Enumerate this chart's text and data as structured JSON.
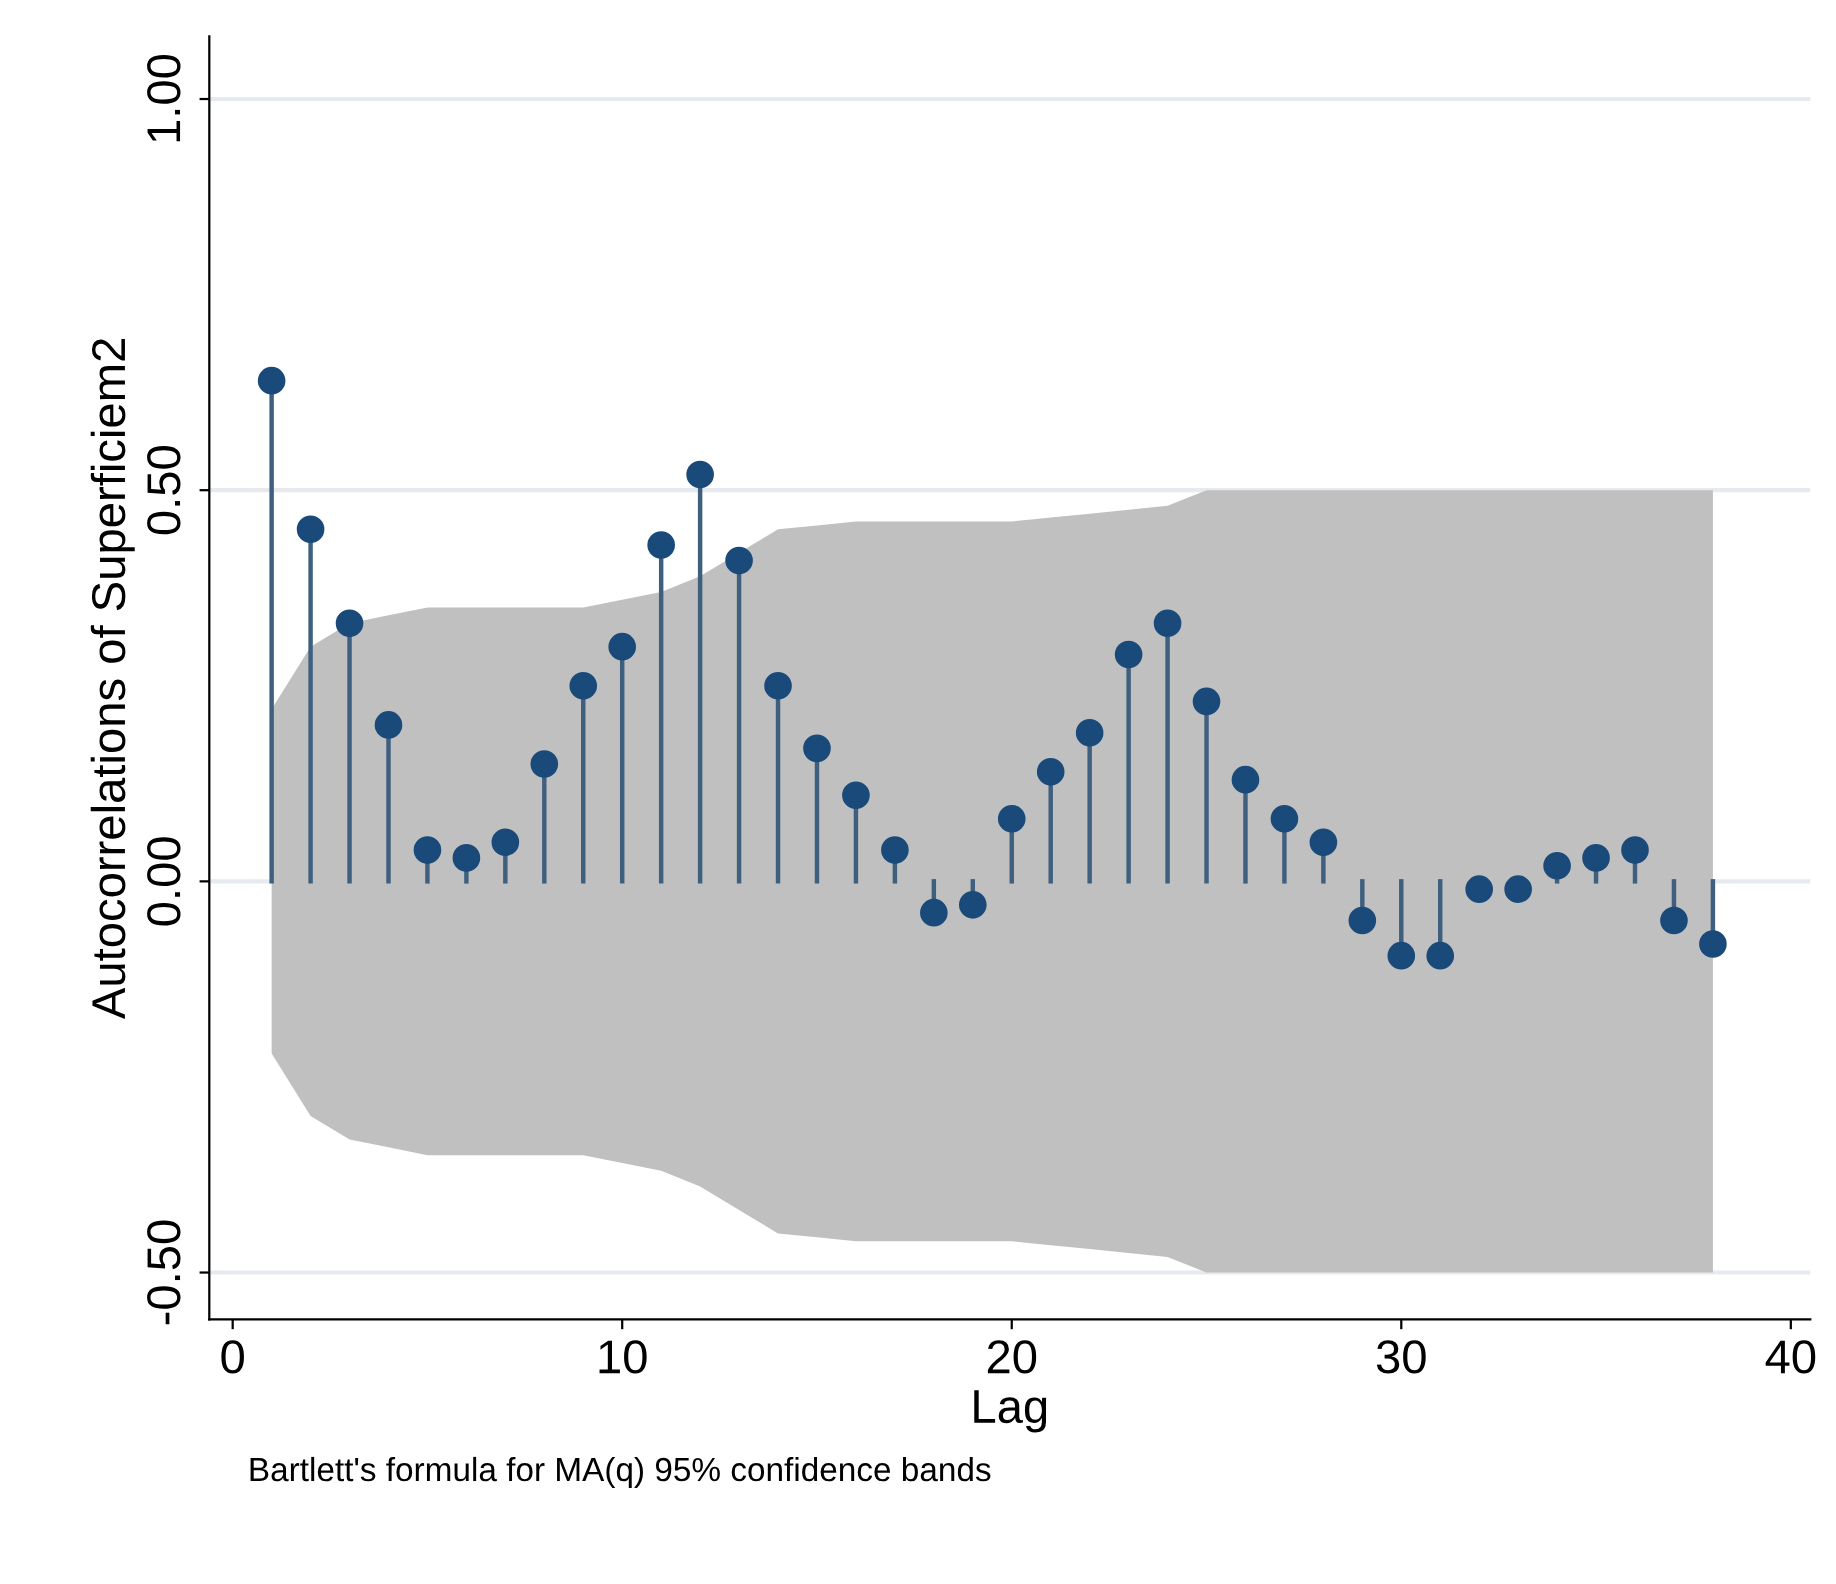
{
  "chart_data": {
    "type": "lollipop",
    "xlabel": "Lag",
    "ylabel": "Autocorrelations of Superficiem2",
    "annotations": [
      "Bartlett's formula for MA(q) 95% confidence bands"
    ],
    "x": [
      1,
      2,
      3,
      4,
      5,
      6,
      7,
      8,
      9,
      10,
      11,
      12,
      13,
      14,
      15,
      16,
      17,
      18,
      19,
      20,
      21,
      22,
      23,
      24,
      25,
      26,
      27,
      28,
      29,
      30,
      31,
      32,
      33,
      34,
      35,
      36,
      37,
      38
    ],
    "series": [
      {
        "color": "#1a4a7a",
        "values": [
          0.64,
          0.45,
          0.33,
          0.2,
          0.04,
          0.03,
          0.05,
          0.15,
          0.25,
          0.3,
          0.43,
          0.52,
          0.41,
          0.25,
          0.17,
          0.11,
          0.04,
          -0.04,
          -0.03,
          0.08,
          0.14,
          0.19,
          0.29,
          0.33,
          0.23,
          0.13,
          0.08,
          0.05,
          -0.05,
          -0.095,
          -0.095,
          -0.01,
          -0.01,
          0.02,
          0.03,
          0.04,
          -0.05,
          -0.08
        ],
        "upper": [
          0.22,
          0.3,
          0.33,
          0.34,
          0.35,
          0.35,
          0.35,
          0.35,
          0.35,
          0.36,
          0.37,
          0.39,
          0.42,
          0.45,
          0.455,
          0.46,
          0.46,
          0.46,
          0.46,
          0.46,
          0.465,
          0.47,
          0.475,
          0.48,
          0.5,
          0.5,
          0.5,
          0.5,
          0.5,
          0.5,
          0.5,
          0.5,
          0.5,
          0.5,
          0.5,
          0.5,
          0.5,
          0.5
        ],
        "lower": [
          -0.22,
          -0.3,
          -0.33,
          -0.34,
          -0.35,
          -0.35,
          -0.35,
          -0.35,
          -0.35,
          -0.36,
          -0.37,
          -0.39,
          -0.42,
          -0.45,
          -0.455,
          -0.46,
          -0.46,
          -0.46,
          -0.46,
          -0.46,
          -0.465,
          -0.47,
          -0.475,
          -0.48,
          -0.5,
          -0.5,
          -0.5,
          -0.5,
          -0.5,
          -0.5,
          -0.5,
          -0.5,
          -0.5,
          -0.5,
          -0.5,
          -0.5,
          -0.5,
          -0.5
        ]
      }
    ],
    "xlim": [
      -0.6,
      40.5
    ],
    "xticks": [
      0,
      10,
      20,
      30,
      40
    ],
    "ylim": [
      -0.56,
      1.08
    ],
    "yticks": [
      {
        "value": -0.5,
        "label": "-0.50"
      },
      {
        "value": 0,
        "label": "0.00"
      },
      {
        "value": 0.5,
        "label": "0.50"
      },
      {
        "value": 1,
        "label": "1.00"
      }
    ],
    "grid": "y",
    "marker": "circle",
    "legend": false
  }
}
